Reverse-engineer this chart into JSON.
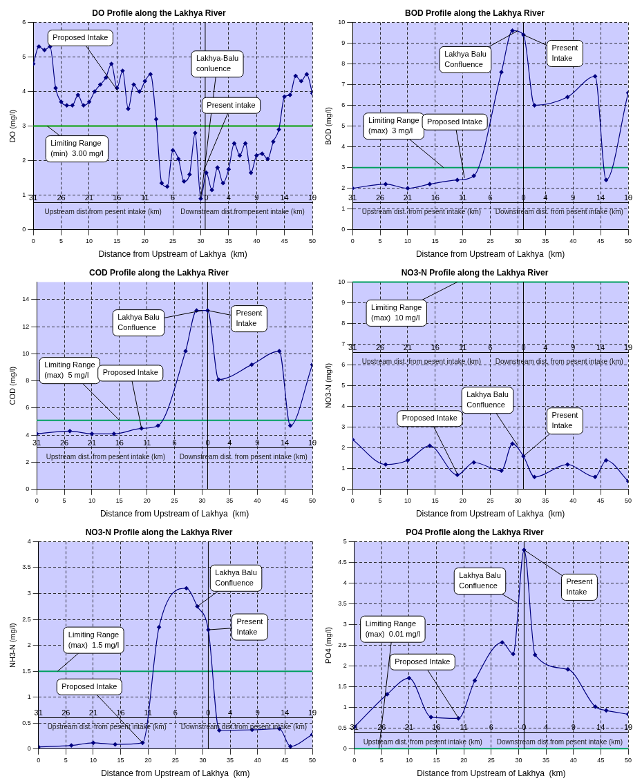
{
  "chart_data": [
    {
      "type": "line",
      "title": "DO Profile along the Lakhya River",
      "xlabel": "Distance from Upstream of Lakhya  (km)",
      "ylabel": "DO (mg/l)",
      "color": "#000080",
      "marker": "diamond",
      "grid": true,
      "x": [
        0,
        1,
        2,
        3,
        4,
        5,
        6,
        7,
        8,
        9,
        10,
        11,
        12,
        13,
        14,
        15,
        16,
        17,
        18,
        19,
        20,
        21,
        22,
        23,
        24,
        25,
        26,
        27,
        28,
        29,
        30,
        31,
        32,
        33,
        34,
        35,
        36,
        37,
        38,
        39,
        40,
        41,
        42,
        43,
        44,
        45,
        46,
        47,
        48,
        49,
        50
      ],
      "values": [
        4.8,
        5.3,
        5.2,
        5.3,
        4.1,
        3.7,
        3.6,
        3.6,
        3.9,
        3.6,
        3.7,
        4.0,
        4.2,
        4.4,
        4.8,
        4.1,
        4.6,
        3.5,
        4.2,
        4.0,
        4.3,
        4.5,
        3.2,
        1.35,
        1.25,
        2.3,
        2.05,
        1.4,
        1.6,
        2.8,
        0.9,
        1.65,
        1.15,
        1.8,
        1.35,
        1.75,
        2.5,
        2.15,
        2.5,
        1.65,
        2.15,
        2.2,
        2.05,
        2.55,
        2.9,
        3.85,
        3.9,
        4.45,
        4.3,
        4.5,
        3.95
      ],
      "xlim": [
        0,
        50
      ],
      "xticks": [
        0,
        5,
        10,
        15,
        20,
        25,
        30,
        35,
        40,
        45,
        50
      ],
      "ylim": [
        0,
        6
      ],
      "yticks": [
        0,
        1,
        2,
        3,
        4,
        5,
        6
      ],
      "x2lim": [
        31,
        -19
      ],
      "x2ticks": [
        31,
        26,
        21,
        16,
        11,
        6,
        0,
        {
          "value": -4,
          "label": "4"
        },
        {
          "value": -9,
          "label": "9"
        },
        {
          "value": -14,
          "label": "14"
        },
        {
          "value": -19,
          "label": "19"
        }
      ],
      "ref_lines": [
        {
          "axis": "y",
          "value": 3,
          "color": "#00a000"
        },
        {
          "axis": "x",
          "value": 30.8,
          "color": "#000000"
        }
      ],
      "annotations": [
        "Upstream dist.from pesent intake (km)",
        "Downstream dist.frompesent intake (km)",
        {
          "text": "Proposed Intake",
          "x": 15,
          "y": 4.05
        },
        {
          "text": "Lakhya-Balu\nconluence",
          "x": 30,
          "y": 0.9
        },
        {
          "text": "Present intake",
          "x": 30.5,
          "y": 1.7
        },
        {
          "text": "Limiting Range\n(min)  3.00 mg/l",
          "x": 2.5,
          "y": 3
        }
      ]
    },
    {
      "type": "line",
      "title": "BOD Profile along the Lakhya River",
      "xlabel": "Distance from Upstream of Lakhya  (km)",
      "ylabel": "BOD (mg/l)",
      "color": "#000080",
      "marker": "diamond",
      "grid": true,
      "x": [
        0,
        6,
        10,
        14,
        19,
        22,
        27,
        29,
        31,
        33,
        39,
        44,
        46,
        50
      ],
      "values": [
        2.0,
        2.2,
        2.0,
        2.2,
        2.4,
        2.6,
        7.6,
        9.6,
        9.4,
        6.0,
        6.4,
        7.4,
        2.4,
        6.6
      ],
      "xlim": [
        0,
        50
      ],
      "xticks": [
        0,
        5,
        10,
        15,
        20,
        25,
        30,
        35,
        40,
        45,
        50
      ],
      "ylim": [
        0,
        10
      ],
      "yticks": [
        0,
        1,
        2,
        3,
        4,
        5,
        6,
        7,
        8,
        9,
        10
      ],
      "x2lim": [
        31,
        -19
      ],
      "x2ticks": [
        31,
        26,
        21,
        16,
        11,
        6,
        0,
        {
          "value": -4,
          "label": "4"
        },
        {
          "value": -9,
          "label": "9"
        },
        {
          "value": -14,
          "label": "14"
        },
        {
          "value": -19,
          "label": "19"
        }
      ],
      "ref_lines": [
        {
          "axis": "y",
          "value": 3,
          "color": "#00a060"
        },
        {
          "axis": "x",
          "value": 31,
          "color": "#000000"
        }
      ],
      "annotations": [
        "Upstream dist. from pesent intake (km)",
        "Downstream dist. from pesent intake (km)",
        {
          "text": "Lakhya Balu\nConfluence",
          "x": 30,
          "y": 9.6
        },
        {
          "text": "Present\nIntake",
          "x": 31,
          "y": 9.4
        },
        {
          "text": "Limiting Range\n(max)  3 mg/l",
          "x": 16.5,
          "y": 3
        },
        {
          "text": "Proposed Intake",
          "x": 20.3,
          "y": 2.5
        }
      ]
    },
    {
      "type": "line",
      "title": "COD Profile along the Lakhya River",
      "xlabel": "Distance from Upstream of Lakhya  (km)",
      "ylabel": "COD (mg/l)",
      "color": "#000080",
      "marker": "diamond",
      "grid": true,
      "x": [
        0,
        6,
        10,
        14,
        19,
        22,
        27,
        29,
        31,
        33,
        39,
        44,
        46,
        50
      ],
      "values": [
        4.1,
        4.3,
        4.1,
        4.1,
        4.5,
        4.7,
        10.2,
        13.2,
        13.2,
        8.1,
        9.2,
        10.2,
        4.7,
        9.2
      ],
      "xlim": [
        0,
        50
      ],
      "xticks": [
        0,
        5,
        10,
        15,
        20,
        25,
        30,
        35,
        40,
        45,
        50
      ],
      "ylim": [
        0,
        15.3
      ],
      "yticks": [
        0,
        2,
        4,
        6,
        8,
        10,
        12,
        14
      ],
      "x2lim": [
        31,
        -19
      ],
      "x2ticks": [
        31,
        26,
        21,
        16,
        11,
        6,
        0,
        {
          "value": -4,
          "label": "4"
        },
        {
          "value": -9,
          "label": "9"
        },
        {
          "value": -14,
          "label": "14"
        },
        {
          "value": -19,
          "label": "19"
        }
      ],
      "ref_lines": [
        {
          "axis": "y",
          "value": 5.1,
          "color": "#00a060"
        },
        {
          "axis": "x",
          "value": 31,
          "color": "#000000"
        }
      ],
      "annotations": [
        "Upstream dist. from pesent intake (km)",
        "Downstream dist. from pesent intake (km)",
        {
          "text": "Lakhya Balu\nConfluence",
          "x": 30,
          "y": 13.2
        },
        {
          "text": "Present\nIntake",
          "x": 31,
          "y": 13.2
        },
        {
          "text": "Limiting Range\n(max)  5 mg/l",
          "x": 15,
          "y": 5.1
        },
        {
          "text": "Proposed Intake",
          "x": 19,
          "y": 4.5
        }
      ]
    },
    {
      "type": "line",
      "title": "NO3-N Profile along the Lakhya River",
      "xlabel": "Distance from Upstream of Lakhya  (km)",
      "ylabel": "NO3-N (mg/l)",
      "color": "#000080",
      "marker": "diamond",
      "grid": true,
      "x": [
        0,
        6,
        10,
        14,
        19,
        22,
        27,
        29,
        31,
        33,
        39,
        44,
        46,
        50
      ],
      "values": [
        2.4,
        1.2,
        1.4,
        2.1,
        0.7,
        1.3,
        0.9,
        2.2,
        1.6,
        0.6,
        1.2,
        0.6,
        1.4,
        0.4
      ],
      "xlim": [
        0,
        50
      ],
      "xticks": [
        0,
        5,
        10,
        15,
        20,
        25,
        30,
        35,
        40,
        45,
        50
      ],
      "ylim": [
        0,
        10
      ],
      "yticks": [
        0,
        1,
        2,
        3,
        4,
        5,
        6,
        7,
        8,
        9,
        10
      ],
      "x2lim": [
        31,
        -19
      ],
      "x2ticks": [
        31,
        26,
        21,
        16,
        11,
        6,
        0,
        {
          "value": -4,
          "label": "4"
        },
        {
          "value": -9,
          "label": "9"
        },
        {
          "value": -14,
          "label": "14"
        },
        {
          "value": -19,
          "label": "19"
        }
      ],
      "ref_lines": [
        {
          "axis": "y",
          "value": 10,
          "color": "#00a060"
        },
        {
          "axis": "x",
          "value": 31,
          "color": "#000000"
        }
      ],
      "annotations": [
        "Upstream dist. from pesent intake (km)",
        "Downstream dist. from pesent intake (km)",
        {
          "text": "Limiting Range\n(max)  10 mg/l",
          "x": 19,
          "y": 10
        },
        {
          "text": "Proposed Intake",
          "x": 19,
          "y": 0.75
        },
        {
          "text": "Lakhya Balu\nConfluence",
          "x": 30,
          "y": 2.1
        },
        {
          "text": "Present\nIntake",
          "x": 31,
          "y": 1.6
        }
      ]
    },
    {
      "type": "line",
      "title": "NO3-N Profile along the Lakhya River",
      "xlabel": "Distance from Upstream of Lakhya  (km)",
      "ylabel": "NH3-N (mg/l)",
      "color": "#000080",
      "marker": "diamond",
      "grid": true,
      "x": [
        0,
        6,
        10,
        14,
        19,
        22,
        27,
        29,
        31,
        33,
        39,
        44,
        46,
        50
      ],
      "values": [
        0.04,
        0.07,
        0.12,
        0.09,
        0.12,
        2.35,
        3.1,
        2.75,
        2.3,
        0.36,
        0.37,
        0.39,
        0.05,
        0.28
      ],
      "xlim": [
        0,
        50
      ],
      "xticks": [
        0,
        5,
        10,
        15,
        20,
        25,
        30,
        35,
        40,
        45,
        50
      ],
      "ylim": [
        0,
        4
      ],
      "yticks": [
        0,
        0.5,
        1,
        1.5,
        2,
        2.5,
        3,
        3.5,
        4
      ],
      "x2lim": [
        31,
        -19
      ],
      "x2ticks": [
        31,
        26,
        21,
        16,
        11,
        6,
        0,
        {
          "value": -4,
          "label": "4"
        },
        {
          "value": -9,
          "label": "9"
        },
        {
          "value": -14,
          "label": "14"
        },
        {
          "value": -19,
          "label": "19"
        }
      ],
      "ref_lines": [
        {
          "axis": "y",
          "value": 1.5,
          "color": "#00a060"
        },
        {
          "axis": "x",
          "value": 31,
          "color": "#000000"
        }
      ],
      "annotations": [
        "Upstream dist. from pesent intake (km)",
        "Downstream dist.from pesent intake (km)",
        {
          "text": "Lakhya Balu\nConfluence",
          "x": 29,
          "y": 2.75
        },
        {
          "text": "Present\nIntake",
          "x": 31,
          "y": 2.3
        },
        {
          "text": "Limiting Range\n(max)  1.5 mg/l",
          "x": 3.5,
          "y": 1.5
        },
        {
          "text": "Proposed Intake",
          "x": 19,
          "y": 0.12
        }
      ]
    },
    {
      "type": "line",
      "title": "PO4 Profile along the Lakhya River",
      "xlabel": "Distance from Upstream of Lakhya  (km)",
      "ylabel": "PO4 (mg/l)",
      "color": "#000080",
      "marker": "diamond",
      "grid": true,
      "x": [
        0,
        6,
        10,
        14,
        19,
        22,
        27,
        29,
        31,
        33,
        39,
        44,
        46,
        50
      ],
      "values": [
        0.53,
        1.32,
        1.71,
        0.77,
        0.74,
        1.65,
        2.57,
        2.29,
        4.8,
        2.27,
        1.92,
        1.02,
        0.93,
        0.84
      ],
      "xlim": [
        0,
        50
      ],
      "xticks": [
        0,
        5,
        10,
        15,
        20,
        25,
        30,
        35,
        40,
        45,
        50
      ],
      "ylim": [
        0,
        5
      ],
      "yticks": [
        0,
        0.5,
        1,
        1.5,
        2,
        2.5,
        3,
        3.5,
        4,
        4.5,
        5
      ],
      "x2lim": [
        31,
        -19
      ],
      "x2ticks": [
        31,
        26,
        21,
        16,
        11,
        6,
        0,
        {
          "value": -4,
          "label": "4"
        },
        {
          "value": -9,
          "label": "9"
        },
        {
          "value": -14,
          "label": "14"
        },
        {
          "value": -19,
          "label": "19"
        }
      ],
      "ref_lines": [
        {
          "axis": "y",
          "value": 0.01,
          "color": "#00a060"
        },
        {
          "axis": "x",
          "value": 31,
          "color": "#000000"
        }
      ],
      "annotations": [
        "Upstream dist. from pesent intake (km)",
        "Downstream dist.from pesent intake (km)",
        {
          "text": "Limiting Range\n(max)  0.01 mg/l",
          "x": 4.5,
          "y": 0.01
        },
        {
          "text": "Proposed Intake",
          "x": 19,
          "y": 0.75
        },
        {
          "text": "Lakhya Balu\nConfluence",
          "x": 30,
          "y": 3.5
        },
        {
          "text": "Present\nIntake",
          "x": 31,
          "y": 4.8
        }
      ]
    }
  ]
}
